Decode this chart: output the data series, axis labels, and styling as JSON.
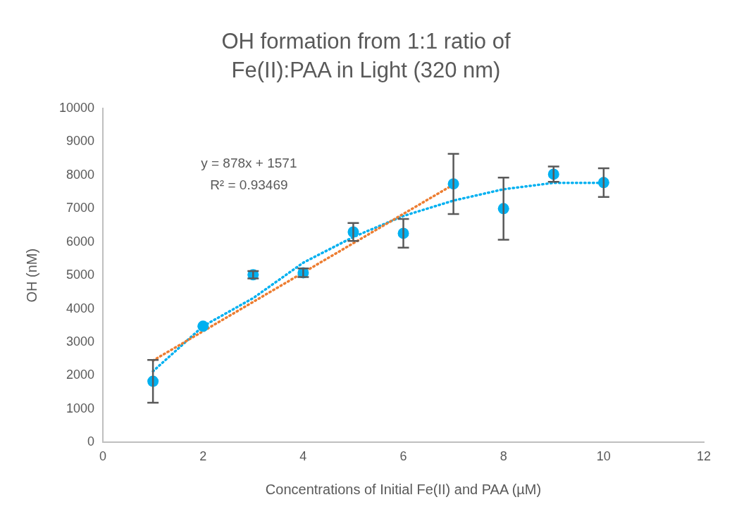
{
  "chart_data": {
    "type": "scatter",
    "title": "OH formation from 1:1 ratio of Fe(II):PAA in Light (320 nm)",
    "xlabel": "Concentrations of Initial Fe(II) and PAA (µM)",
    "ylabel": "OH (nM)",
    "x": [
      1,
      2,
      3,
      4,
      5,
      6,
      7,
      8,
      9,
      10
    ],
    "series": [
      {
        "color": "#00b0f0",
        "values": [
          1830,
          3480,
          5020,
          5080,
          6300,
          6260,
          7740,
          7000,
          8030,
          7780
        ],
        "errors": [
          640,
          null,
          110,
          130,
          270,
          430,
          900,
          930,
          230,
          430
        ]
      },
      {
        "type": "line",
        "color": "#ed7d31",
        "x": [
          1,
          7
        ],
        "values": [
          2450,
          7720
        ],
        "line_style": "dotted",
        "marker": "none"
      },
      {
        "type": "line",
        "color": "#00b0f0",
        "x": [
          1,
          2,
          3,
          4,
          5,
          6,
          7,
          8,
          9,
          10
        ],
        "values": [
          2130,
          3480,
          4320,
          5380,
          6150,
          6780,
          7240,
          7580,
          7770,
          7770
        ],
        "line_style": "dotted",
        "marker": "none"
      }
    ],
    "xlim": [
      0,
      12
    ],
    "xticks": [
      0,
      2,
      4,
      6,
      8,
      10,
      12
    ],
    "ylim": [
      0,
      10000
    ],
    "yticks": [
      0,
      1000,
      2000,
      3000,
      4000,
      5000,
      6000,
      7000,
      8000,
      9000,
      10000
    ],
    "grid": false,
    "legend": false,
    "marker": "circle",
    "annotations": [
      "y = 878x + 1571",
      "R² = 0.93469"
    ]
  }
}
